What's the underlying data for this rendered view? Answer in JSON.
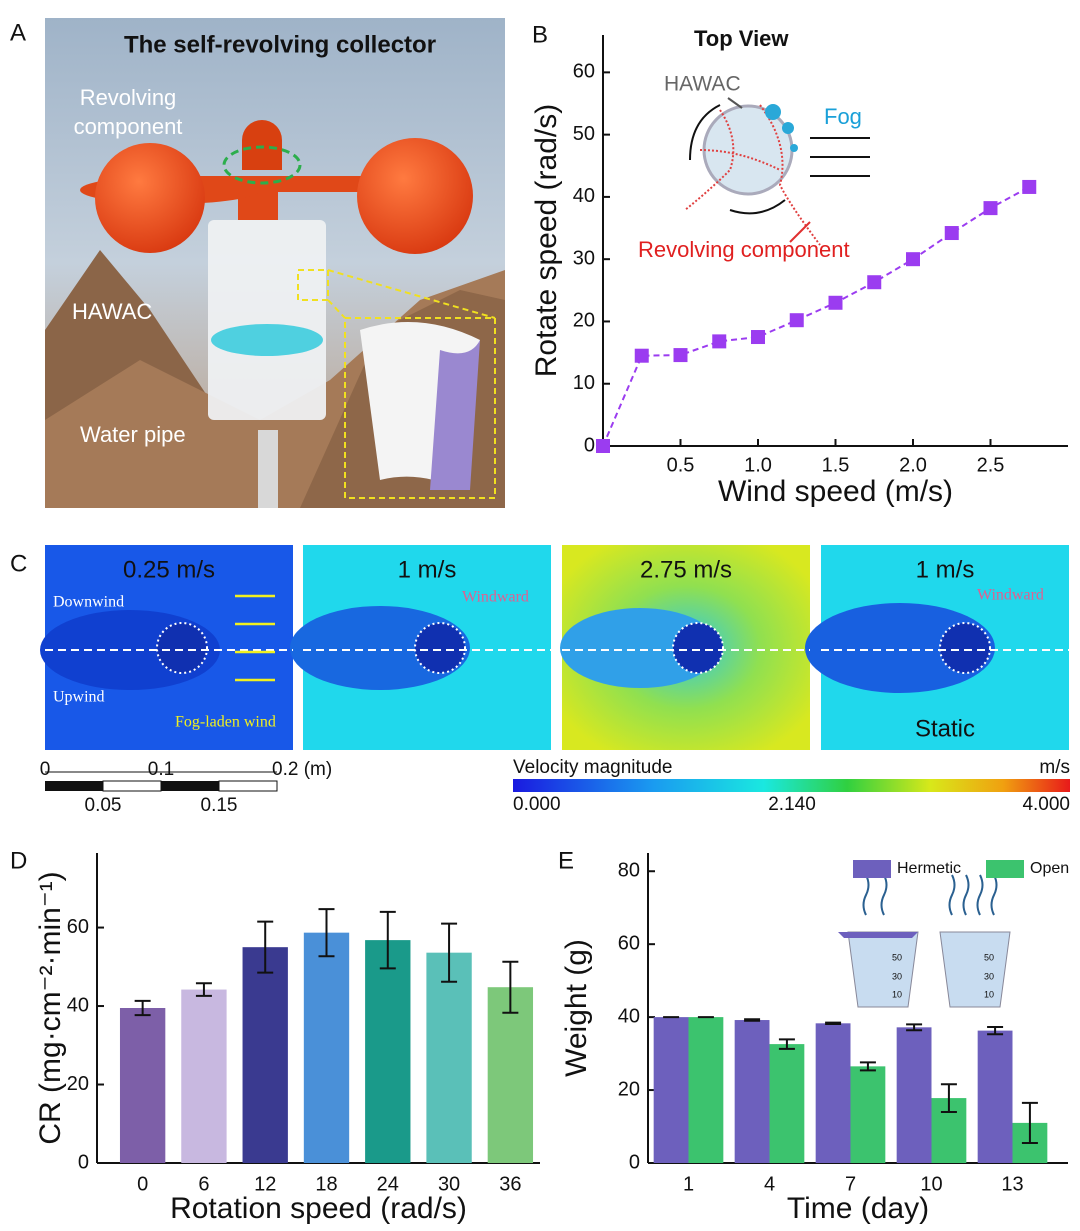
{
  "panel_labels": [
    "A",
    "B",
    "C",
    "D",
    "E"
  ],
  "panel_a": {
    "title": "The self-revolving collector",
    "revolving": [
      "Revolving",
      "component"
    ],
    "hawac": "HAWAC",
    "pipe": "Water pipe"
  },
  "panel_b_inset": {
    "title": "Top View",
    "hawac": "HAWAC",
    "fog": "Fog",
    "component": "Revolving component"
  },
  "panel_c": {
    "speeds": [
      "0.25 m/s",
      "1 m/s",
      "2.75 m/s",
      "1 m/s"
    ],
    "downwind": "Downwind",
    "upwind": "Upwind",
    "wind": "Fog-laden wind",
    "windward": [
      "Windward",
      "Windward"
    ],
    "static": "Static",
    "scale_bar": {
      "top": [
        "0",
        "0.1",
        "0.2 (m)"
      ],
      "bottom": [
        "0.05",
        "0.15"
      ]
    },
    "colorbar": {
      "title": "Velocity magnitude",
      "unit": "m/s",
      "labels": [
        "0.000",
        "2.140",
        "4.000"
      ]
    }
  },
  "panel_e_inset": {
    "beaker_marks": [
      [
        "50",
        "30",
        "10"
      ],
      [
        "50",
        "30",
        "10"
      ]
    ]
  },
  "chart_data": [
    {
      "type": "line",
      "xlabel": "Wind speed (m/s)",
      "ylabel": "Rotate speed (rad/s)",
      "x": [
        0,
        0.25,
        0.5,
        0.75,
        1.0,
        1.25,
        1.5,
        1.75,
        2.0,
        2.25,
        2.5,
        2.75
      ],
      "series": [
        {
          "color": "#9b3cf0",
          "values": [
            0,
            14.5,
            14.6,
            16.8,
            17.5,
            20.2,
            23,
            26.3,
            30,
            34.2,
            38.2,
            41.6
          ]
        }
      ],
      "marker": "square",
      "linestyle": "dashed",
      "xlim": [
        0,
        3
      ],
      "xticks": [
        0.5,
        {
          "value": 1,
          "label": "1.0"
        },
        1.5,
        {
          "value": 2,
          "label": "2.0"
        },
        2.5
      ],
      "ylim": [
        0,
        66
      ],
      "yticks": [
        0,
        10,
        20,
        30,
        40,
        50,
        60
      ]
    },
    {
      "type": "bar",
      "xlabel": "Rotation speed (rad/s)",
      "ylabel": "CR (mg·cm⁻²·min⁻¹)",
      "categories": [
        "0",
        "6",
        "12",
        "18",
        "24",
        "30",
        "36"
      ],
      "values": [
        39.5,
        44.2,
        55,
        58.7,
        56.8,
        53.6,
        44.8
      ],
      "errors": [
        1.8,
        1.6,
        6.5,
        6,
        7.2,
        7.4,
        6.5
      ],
      "colors": [
        "#7d5fa8",
        "#c8b8e0",
        "#3a3a90",
        "#4a90d8",
        "#1a9a8a",
        "#5ac0b8",
        "#7dc87a"
      ],
      "ylim": [
        0,
        79
      ],
      "yticks": [
        0,
        20,
        40,
        60
      ]
    },
    {
      "type": "grouped_bar",
      "xlabel": "Time (day)",
      "ylabel": "Weight (g)",
      "categories": [
        "1",
        "4",
        "7",
        "10",
        "13"
      ],
      "series": [
        {
          "name": "Hermetic",
          "color": "#6d60bd",
          "values": [
            40,
            39.2,
            38.3,
            37.2,
            36.3
          ],
          "errors": [
            0,
            0.2,
            0.2,
            0.8,
            1.0
          ]
        },
        {
          "name": "Open",
          "color": "#3cc36e",
          "values": [
            40,
            32.6,
            26.5,
            17.8,
            11
          ],
          "errors": [
            0,
            1.3,
            1.1,
            3.8,
            5.5
          ]
        }
      ],
      "ylim": [
        0,
        85
      ],
      "yticks": [
        0,
        20,
        40,
        60,
        80
      ],
      "legend": "upper right"
    }
  ]
}
